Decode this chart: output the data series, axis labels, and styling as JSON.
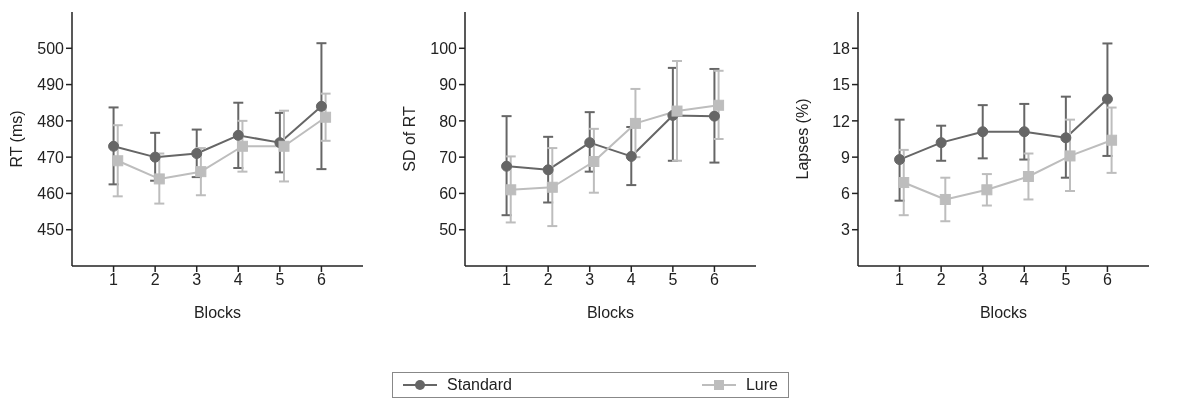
{
  "chart_data": [
    {
      "type": "line",
      "xlabel": "Blocks",
      "ylabel": "RT (ms)",
      "xlim": [
        0,
        7
      ],
      "xticks": [
        1,
        2,
        3,
        4,
        5,
        6
      ],
      "ylim": [
        440,
        510
      ],
      "yticks": [
        450,
        460,
        470,
        480,
        490,
        500
      ],
      "grid": false,
      "legend": "bottom",
      "line_style": "solid",
      "series": [
        {
          "name": "Standard",
          "color": "#666666",
          "marker": "circle",
          "x": [
            1,
            2,
            3,
            4,
            5,
            6
          ],
          "values": [
            473,
            470,
            471,
            476,
            474,
            484
          ],
          "errors": [
            [
              462.5,
              483.7
            ],
            [
              463.5,
              476.7
            ],
            [
              464.5,
              477.6
            ],
            [
              467,
              485
            ],
            [
              465.8,
              482.2
            ],
            [
              466.7,
              501.4
            ]
          ]
        },
        {
          "name": "Lure",
          "color": "#bdbdbd",
          "marker": "square",
          "x": [
            1.1,
            2.1,
            3.1,
            4.1,
            5.1,
            6.1
          ],
          "values": [
            469,
            464,
            466,
            473,
            473,
            481
          ],
          "errors": [
            [
              459.2,
              478.8
            ],
            [
              457.2,
              471
            ],
            [
              459.5,
              472.5
            ],
            [
              466,
              480
            ],
            [
              463.3,
              482.8
            ],
            [
              474.5,
              487.5
            ]
          ]
        }
      ]
    },
    {
      "type": "line",
      "xlabel": "Blocks",
      "ylabel": "SD of RT",
      "xlim": [
        0,
        7
      ],
      "xticks": [
        1,
        2,
        3,
        4,
        5,
        6
      ],
      "ylim": [
        40,
        110
      ],
      "yticks": [
        50,
        60,
        70,
        80,
        90,
        100
      ],
      "grid": false,
      "line_style": "solid",
      "series": [
        {
          "color": "#666666",
          "marker": "circle",
          "x": [
            1,
            2,
            3,
            4,
            5,
            6
          ],
          "values": [
            67.5,
            66.5,
            74,
            70.2,
            81.5,
            81.3
          ],
          "errors": [
            [
              54,
              81.3
            ],
            [
              57.5,
              75.6
            ],
            [
              66,
              82.4
            ],
            [
              62.3,
              78.3
            ],
            [
              69,
              94.6
            ],
            [
              68.5,
              94.3
            ]
          ]
        },
        {
          "color": "#bdbdbd",
          "marker": "square",
          "x": [
            1.1,
            2.1,
            3.1,
            4.1,
            5.1,
            6.1
          ],
          "values": [
            61,
            61.7,
            68.8,
            79.3,
            82.7,
            84.3
          ],
          "errors": [
            [
              52,
              70.2
            ],
            [
              51,
              72.5
            ],
            [
              60.2,
              77.8
            ],
            [
              70,
              88.8
            ],
            [
              69,
              96.5
            ],
            [
              75,
              93.8
            ]
          ]
        }
      ]
    },
    {
      "type": "line",
      "xlabel": "Blocks",
      "ylabel": "Lapses (%)",
      "xlim": [
        0,
        7
      ],
      "xticks": [
        1,
        2,
        3,
        4,
        5,
        6
      ],
      "ylim": [
        0,
        21
      ],
      "yticks": [
        3,
        6,
        9,
        12,
        15,
        18
      ],
      "grid": false,
      "line_style": "solid",
      "series": [
        {
          "color": "#666666",
          "marker": "circle",
          "x": [
            1,
            2,
            3,
            4,
            5,
            6
          ],
          "values": [
            8.8,
            10.2,
            11.1,
            11.1,
            10.6,
            13.8
          ],
          "errors": [
            [
              5.4,
              12.1
            ],
            [
              8.7,
              11.6
            ],
            [
              8.9,
              13.3
            ],
            [
              8.8,
              13.4
            ],
            [
              7.3,
              14
            ],
            [
              9.1,
              18.4
            ]
          ]
        },
        {
          "color": "#bdbdbd",
          "marker": "square",
          "x": [
            1.1,
            2.1,
            3.1,
            4.1,
            5.1,
            6.1
          ],
          "values": [
            6.9,
            5.5,
            6.3,
            7.4,
            9.1,
            10.4
          ],
          "errors": [
            [
              4.2,
              9.6
            ],
            [
              3.7,
              7.3
            ],
            [
              5,
              7.6
            ],
            [
              5.5,
              9.3
            ],
            [
              6.2,
              12.1
            ],
            [
              7.7,
              13.1
            ]
          ]
        }
      ]
    }
  ]
}
